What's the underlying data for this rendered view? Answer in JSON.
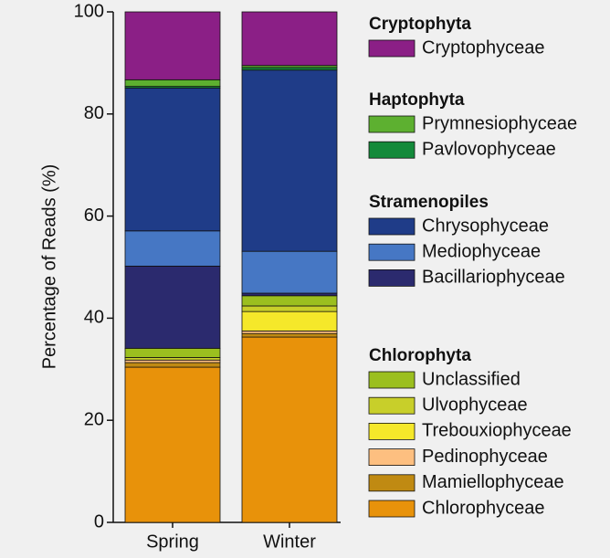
{
  "chart_data": {
    "type": "stacked_bar",
    "y_label": "Percentage of Reads (%)",
    "categories": [
      "Spring",
      "Winter"
    ],
    "ylim": [
      0,
      100
    ],
    "yticks": [
      0,
      20,
      40,
      60,
      80,
      100
    ],
    "groups": [
      {
        "name": "Chlorophyta",
        "series": [
          {
            "name": "Chlorophyceae",
            "color": "#e8920a",
            "values": [
              30.4,
              36.3
            ]
          },
          {
            "name": "Mamiellophyceae",
            "color": "#c08a12",
            "values": [
              0.9,
              0.7
            ]
          },
          {
            "name": "Pedinophyceae",
            "color": "#fdbf80",
            "values": [
              0.5,
              0.5
            ]
          },
          {
            "name": "Trebouxiophyceae",
            "color": "#f5e82a",
            "values": [
              0,
              3.8
            ]
          },
          {
            "name": "Ulvophyceae",
            "color": "#c8cf2a",
            "values": [
              0.5,
              1.1
            ]
          },
          {
            "name": "Unclassified",
            "color": "#9bbf1f",
            "values": [
              1.8,
              2.0
            ]
          }
        ]
      },
      {
        "name": "Stramenopiles",
        "series": [
          {
            "name": "Bacillariophyceae",
            "color": "#2b2a6e",
            "values": [
              16.1,
              0.5
            ]
          },
          {
            "name": "Mediophyceae",
            "color": "#4677c4",
            "values": [
              6.9,
              8.2
            ]
          },
          {
            "name": "Chrysophyceae",
            "color": "#1f3c88",
            "values": [
              28.0,
              35.5
            ]
          }
        ]
      },
      {
        "name": "Haptophyta",
        "series": [
          {
            "name": "Pavlovophyceae",
            "color": "#138a3a",
            "values": [
              0.3,
              0.5
            ]
          },
          {
            "name": "Prymnesiophyceae",
            "color": "#5db030",
            "values": [
              1.3,
              0.4
            ]
          }
        ]
      },
      {
        "name": "Cryptophyta",
        "series": [
          {
            "name": "Cryptophyceae",
            "color": "#8b1f86",
            "values": [
              13.3,
              10.5
            ]
          }
        ]
      }
    ]
  }
}
